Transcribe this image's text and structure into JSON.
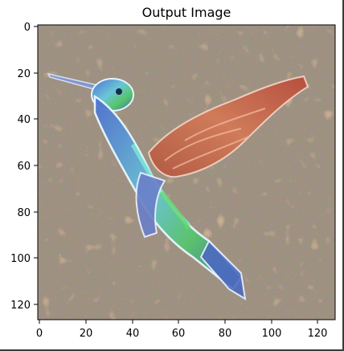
{
  "title": "Output Image",
  "image_subject": "hummingbird-style-transfer",
  "x_axis": {
    "ticks": [
      {
        "label": "0",
        "value": 0
      },
      {
        "label": "20",
        "value": 20
      },
      {
        "label": "40",
        "value": 40
      },
      {
        "label": "60",
        "value": 60
      },
      {
        "label": "80",
        "value": 80
      },
      {
        "label": "100",
        "value": 100
      },
      {
        "label": "120",
        "value": 120
      }
    ]
  },
  "y_axis": {
    "ticks": [
      {
        "label": "0",
        "value": 0
      },
      {
        "label": "20",
        "value": 20
      },
      {
        "label": "40",
        "value": 40
      },
      {
        "label": "60",
        "value": 60
      },
      {
        "label": "80",
        "value": 80
      },
      {
        "label": "100",
        "value": 100
      },
      {
        "label": "120",
        "value": 120
      }
    ]
  },
  "colors": {
    "frame": "#3a3a3a",
    "background_tone": "#9a8a78",
    "bird_blue": "#5a7fd0",
    "bird_cyan": "#6fe3e0",
    "wing_red": "#c0503a",
    "wing_orange": "#d88a5a",
    "accent_green": "#5fcf6f"
  }
}
